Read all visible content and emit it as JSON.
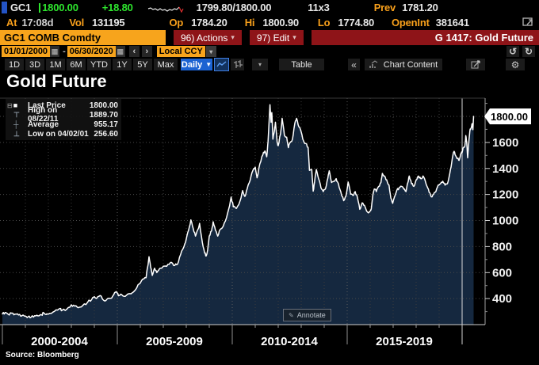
{
  "top_bar": {
    "ticker": "GC1",
    "last_price": "1800.00",
    "change": "+18.80",
    "bid_ask": "1799.80/1800.00",
    "lot_size": "11x3",
    "prev_label": "Prev",
    "prev_value": "1781.20",
    "at_label": "At",
    "at_value": "17:08d",
    "vol_label": "Vol",
    "vol_value": "131195",
    "op_label": "Op",
    "op_value": "1784.20",
    "hi_label": "Hi",
    "hi_value": "1800.90",
    "lo_label": "Lo",
    "lo_value": "1774.80",
    "openint_label": "OpenInt",
    "openint_value": "381641"
  },
  "security_bar": {
    "security": "GC1 COMB Comdty",
    "actions_label": "96) Actions",
    "edit_label": "97) Edit",
    "context": "G 1417: Gold Future"
  },
  "date_bar": {
    "start_date": "01/01/2000",
    "separator": "-",
    "end_date": "06/30/2020",
    "currency": "Local CCY"
  },
  "toolbar": {
    "periods": [
      "1D",
      "3D",
      "1M",
      "6M",
      "YTD",
      "1Y",
      "5Y",
      "Max"
    ],
    "frequency": "Daily",
    "table_label": "Table",
    "chart_content_label": "Chart Content"
  },
  "chart": {
    "title": "Gold Future",
    "legend": [
      {
        "marker": "■",
        "label": "Last Price",
        "value": "1800.00"
      },
      {
        "marker": "⊤",
        "label": "High on 08/22/11",
        "value": "1889.70"
      },
      {
        "marker": "┼",
        "label": "Average",
        "value": "955.17"
      },
      {
        "marker": "⊥",
        "label": "Low on 04/02/01",
        "value": "256.60"
      }
    ],
    "last_price_badge": "1800.00",
    "annotate_label": "Annotate",
    "source": "Source: Bloomberg"
  },
  "icons": {
    "dropdown": "▾",
    "daily_caret": "▼",
    "prev": "‹",
    "next": "›",
    "undo": "↺",
    "redo": "↻",
    "collapse_left": "«",
    "gear": "⚙",
    "calendar": "▦",
    "legend_expand": "⊟",
    "pencil": "✎"
  },
  "chart_data": {
    "type": "area",
    "title": "Gold Future",
    "x_unit": "year",
    "x_range": [
      2000,
      2020.5
    ],
    "ylim": [
      200,
      1940
    ],
    "yticks": [
      400,
      600,
      800,
      1000,
      1200,
      1400,
      1600,
      1800
    ],
    "ytick_labels": [
      400,
      600,
      800,
      1000,
      1200,
      1400,
      1600
    ],
    "x_sections": [
      "2000-2004",
      "2005-2009",
      "2010-2014",
      "2015-2019"
    ],
    "section_boundaries": [
      2000,
      2005,
      2010,
      2015,
      2020
    ],
    "grid": true,
    "colors": {
      "line": "#ffffff",
      "fill": "#15283f"
    },
    "stats": {
      "last": 1800.0,
      "high": 1889.7,
      "high_date": "08/22/11",
      "average": 955.17,
      "low": 256.6,
      "low_date": "04/02/01"
    },
    "series": [
      {
        "name": "GC1 Last Price",
        "points": [
          [
            2000.0,
            282
          ],
          [
            2000.12,
            293
          ],
          [
            2000.25,
            279
          ],
          [
            2000.4,
            288
          ],
          [
            2000.55,
            281
          ],
          [
            2000.7,
            274
          ],
          [
            2000.85,
            268
          ],
          [
            2001.0,
            266
          ],
          [
            2001.12,
            260
          ],
          [
            2001.25,
            257
          ],
          [
            2001.4,
            268
          ],
          [
            2001.55,
            267
          ],
          [
            2001.7,
            276
          ],
          [
            2001.8,
            290
          ],
          [
            2001.9,
            277
          ],
          [
            2002.0,
            281
          ],
          [
            2002.2,
            296
          ],
          [
            2002.4,
            312
          ],
          [
            2002.5,
            324
          ],
          [
            2002.6,
            310
          ],
          [
            2002.8,
            318
          ],
          [
            2003.0,
            352
          ],
          [
            2003.15,
            342
          ],
          [
            2003.3,
            330
          ],
          [
            2003.5,
            348
          ],
          [
            2003.7,
            370
          ],
          [
            2003.9,
            398
          ],
          [
            2004.0,
            415
          ],
          [
            2004.1,
            401
          ],
          [
            2004.25,
            423
          ],
          [
            2004.4,
            388
          ],
          [
            2004.55,
            395
          ],
          [
            2004.7,
            402
          ],
          [
            2004.85,
            432
          ],
          [
            2004.95,
            454
          ],
          [
            2005.05,
            422
          ],
          [
            2005.2,
            428
          ],
          [
            2005.35,
            418
          ],
          [
            2005.5,
            437
          ],
          [
            2005.65,
            445
          ],
          [
            2005.8,
            470
          ],
          [
            2005.95,
            513
          ],
          [
            2006.1,
            550
          ],
          [
            2006.25,
            560
          ],
          [
            2006.38,
            722
          ],
          [
            2006.45,
            640
          ],
          [
            2006.52,
            578
          ],
          [
            2006.62,
            633
          ],
          [
            2006.72,
            600
          ],
          [
            2006.82,
            626
          ],
          [
            2006.95,
            637
          ],
          [
            2007.1,
            650
          ],
          [
            2007.25,
            663
          ],
          [
            2007.35,
            678
          ],
          [
            2007.5,
            655
          ],
          [
            2007.62,
            665
          ],
          [
            2007.75,
            737
          ],
          [
            2007.9,
            800
          ],
          [
            2008.0,
            858
          ],
          [
            2008.1,
            925
          ],
          [
            2008.2,
            1004
          ],
          [
            2008.3,
            940
          ],
          [
            2008.4,
            880
          ],
          [
            2008.5,
            930
          ],
          [
            2008.58,
            978
          ],
          [
            2008.7,
            830
          ],
          [
            2008.8,
            750
          ],
          [
            2008.87,
            728
          ],
          [
            2008.93,
            775
          ],
          [
            2009.0,
            880
          ],
          [
            2009.1,
            920
          ],
          [
            2009.17,
            990
          ],
          [
            2009.27,
            925
          ],
          [
            2009.37,
            880
          ],
          [
            2009.47,
            930
          ],
          [
            2009.57,
            945
          ],
          [
            2009.7,
            995
          ],
          [
            2009.85,
            1090
          ],
          [
            2009.95,
            1180
          ],
          [
            2010.05,
            1105
          ],
          [
            2010.15,
            1095
          ],
          [
            2010.25,
            1115
          ],
          [
            2010.35,
            1155
          ],
          [
            2010.45,
            1230
          ],
          [
            2010.55,
            1185
          ],
          [
            2010.65,
            1245
          ],
          [
            2010.78,
            1310
          ],
          [
            2010.9,
            1385
          ],
          [
            2011.0,
            1410
          ],
          [
            2011.08,
            1328
          ],
          [
            2011.2,
            1435
          ],
          [
            2011.33,
            1505
          ],
          [
            2011.42,
            1535
          ],
          [
            2011.5,
            1490
          ],
          [
            2011.56,
            1610
          ],
          [
            2011.64,
            1890
          ],
          [
            2011.69,
            1755
          ],
          [
            2011.72,
            1830
          ],
          [
            2011.77,
            1625
          ],
          [
            2011.83,
            1685
          ],
          [
            2011.88,
            1755
          ],
          [
            2011.95,
            1605
          ],
          [
            2012.0,
            1575
          ],
          [
            2012.1,
            1665
          ],
          [
            2012.17,
            1785
          ],
          [
            2012.27,
            1655
          ],
          [
            2012.37,
            1640
          ],
          [
            2012.44,
            1560
          ],
          [
            2012.52,
            1600
          ],
          [
            2012.62,
            1625
          ],
          [
            2012.72,
            1745
          ],
          [
            2012.8,
            1785
          ],
          [
            2012.9,
            1720
          ],
          [
            2013.0,
            1680
          ],
          [
            2013.1,
            1612
          ],
          [
            2013.2,
            1592
          ],
          [
            2013.3,
            1562
          ],
          [
            2013.36,
            1385
          ],
          [
            2013.46,
            1392
          ],
          [
            2013.52,
            1225
          ],
          [
            2013.58,
            1295
          ],
          [
            2013.66,
            1392
          ],
          [
            2013.76,
            1320
          ],
          [
            2013.86,
            1252
          ],
          [
            2013.96,
            1222
          ],
          [
            2014.06,
            1245
          ],
          [
            2014.16,
            1325
          ],
          [
            2014.22,
            1382
          ],
          [
            2014.32,
            1292
          ],
          [
            2014.42,
            1302
          ],
          [
            2014.52,
            1322
          ],
          [
            2014.62,
            1282
          ],
          [
            2014.72,
            1222
          ],
          [
            2014.85,
            1152
          ],
          [
            2014.95,
            1192
          ],
          [
            2015.04,
            1296
          ],
          [
            2015.15,
            1202
          ],
          [
            2015.25,
            1192
          ],
          [
            2015.35,
            1222
          ],
          [
            2015.45,
            1172
          ],
          [
            2015.55,
            1086
          ],
          [
            2015.65,
            1136
          ],
          [
            2015.75,
            1116
          ],
          [
            2015.85,
            1072
          ],
          [
            2015.95,
            1062
          ],
          [
            2016.05,
            1090
          ],
          [
            2016.12,
            1200
          ],
          [
            2016.18,
            1242
          ],
          [
            2016.27,
            1222
          ],
          [
            2016.37,
            1262
          ],
          [
            2016.47,
            1292
          ],
          [
            2016.53,
            1362
          ],
          [
            2016.62,
            1342
          ],
          [
            2016.72,
            1312
          ],
          [
            2016.82,
            1272
          ],
          [
            2016.9,
            1172
          ],
          [
            2016.98,
            1132
          ],
          [
            2017.06,
            1182
          ],
          [
            2017.16,
            1232
          ],
          [
            2017.26,
            1252
          ],
          [
            2017.36,
            1262
          ],
          [
            2017.46,
            1242
          ],
          [
            2017.56,
            1222
          ],
          [
            2017.64,
            1292
          ],
          [
            2017.7,
            1342
          ],
          [
            2017.8,
            1282
          ],
          [
            2017.9,
            1262
          ],
          [
            2018.0,
            1312
          ],
          [
            2018.1,
            1342
          ],
          [
            2018.2,
            1322
          ],
          [
            2018.3,
            1342
          ],
          [
            2018.4,
            1302
          ],
          [
            2018.5,
            1252
          ],
          [
            2018.6,
            1212
          ],
          [
            2018.66,
            1182
          ],
          [
            2018.76,
            1202
          ],
          [
            2018.86,
            1222
          ],
          [
            2018.96,
            1272
          ],
          [
            2019.06,
            1282
          ],
          [
            2019.16,
            1302
          ],
          [
            2019.26,
            1272
          ],
          [
            2019.36,
            1282
          ],
          [
            2019.44,
            1342
          ],
          [
            2019.52,
            1412
          ],
          [
            2019.6,
            1502
          ],
          [
            2019.65,
            1532
          ],
          [
            2019.72,
            1498
          ],
          [
            2019.8,
            1478
          ],
          [
            2019.87,
            1462
          ],
          [
            2019.94,
            1512
          ],
          [
            2020.0,
            1522
          ],
          [
            2020.06,
            1562
          ],
          [
            2020.12,
            1572
          ],
          [
            2020.16,
            1652
          ],
          [
            2020.2,
            1602
          ],
          [
            2020.24,
            1482
          ],
          [
            2020.3,
            1622
          ],
          [
            2020.35,
            1702
          ],
          [
            2020.4,
            1712
          ],
          [
            2020.44,
            1745
          ],
          [
            2020.47,
            1698
          ],
          [
            2020.5,
            1800
          ]
        ]
      }
    ]
  }
}
